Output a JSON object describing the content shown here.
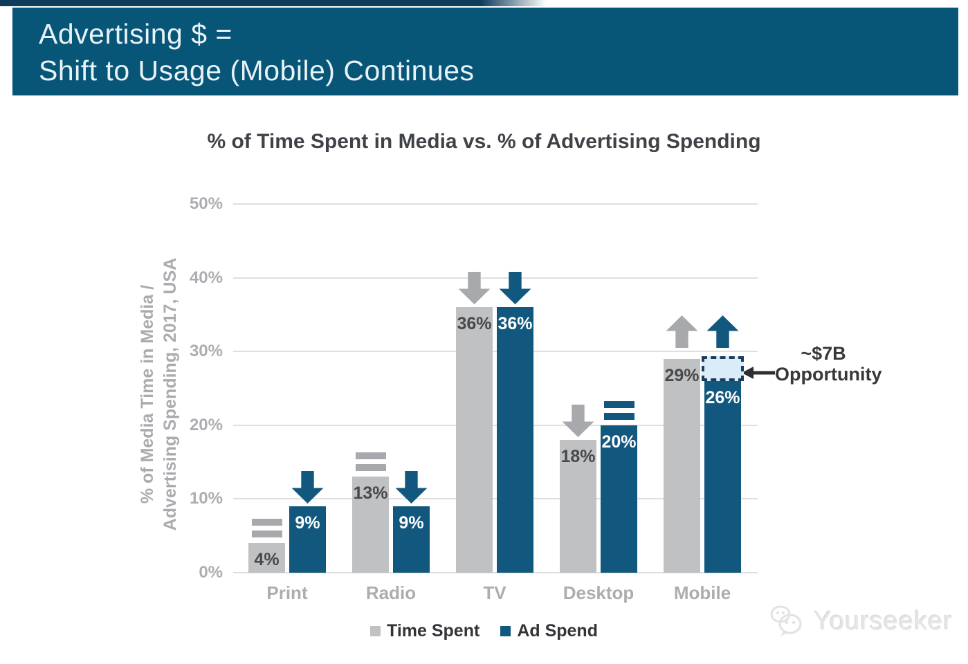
{
  "header": {
    "line1": "Advertising $ =",
    "line2": "Shift to Usage (Mobile) Continues",
    "background_color": "#075678"
  },
  "chart_data": {
    "type": "bar",
    "title": "% of Time Spent in Media vs. % of Advertising Spending",
    "ylabel_line1": "% of Media Time in Media /",
    "ylabel_line2": "Advertising Spending, 2017, USA",
    "xlabel": "",
    "categories": [
      "Print",
      "Radio",
      "TV",
      "Desktop",
      "Mobile"
    ],
    "series": [
      {
        "name": "Time Spent",
        "color": "#bfc1c3",
        "glyph_color": "#a7a9ac",
        "label_color": "#47494b",
        "values": [
          4,
          13,
          36,
          18,
          29
        ],
        "trend": [
          "flat",
          "flat",
          "down",
          "down",
          "up"
        ]
      },
      {
        "name": "Ad Spend",
        "color": "#12587e",
        "glyph_color": "#12587e",
        "label_color": "#ffffff",
        "values": [
          9,
          9,
          36,
          20,
          26
        ],
        "trend": [
          "down",
          "down",
          "down",
          "flat",
          "up"
        ]
      }
    ],
    "yticks": [
      {
        "label": "0%",
        "value": 0
      },
      {
        "label": "10%",
        "value": 10
      },
      {
        "label": "20%",
        "value": 20
      },
      {
        "label": "30%",
        "value": 30
      },
      {
        "label": "40%",
        "value": 40
      },
      {
        "label": "50%",
        "value": 50
      }
    ],
    "ylim": [
      0,
      50
    ],
    "grid": true,
    "legend_position": "bottom",
    "annotation": {
      "label_line1": "~$7B",
      "label_line2": "Opportunity",
      "category": "Mobile",
      "series": "Ad Spend",
      "from_value": 26,
      "to_value": 29,
      "box_fill": "#d9ecf8",
      "box_border": "#1c3c5e"
    }
  },
  "watermark": {
    "label": "Yourseeker",
    "icon": "chat-bubbles-icon"
  }
}
